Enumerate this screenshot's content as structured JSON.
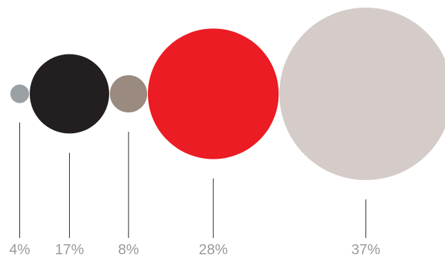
{
  "chart_data": {
    "type": "bubble",
    "values": [
      4,
      17,
      8,
      28,
      37
    ],
    "value_labels": [
      "4%",
      "17%",
      "8%",
      "28%",
      "37%"
    ],
    "colors": [
      "#9aa0a4",
      "#231f20",
      "#9a8a80",
      "#ec1c24",
      "#d5ccc9"
    ]
  }
}
